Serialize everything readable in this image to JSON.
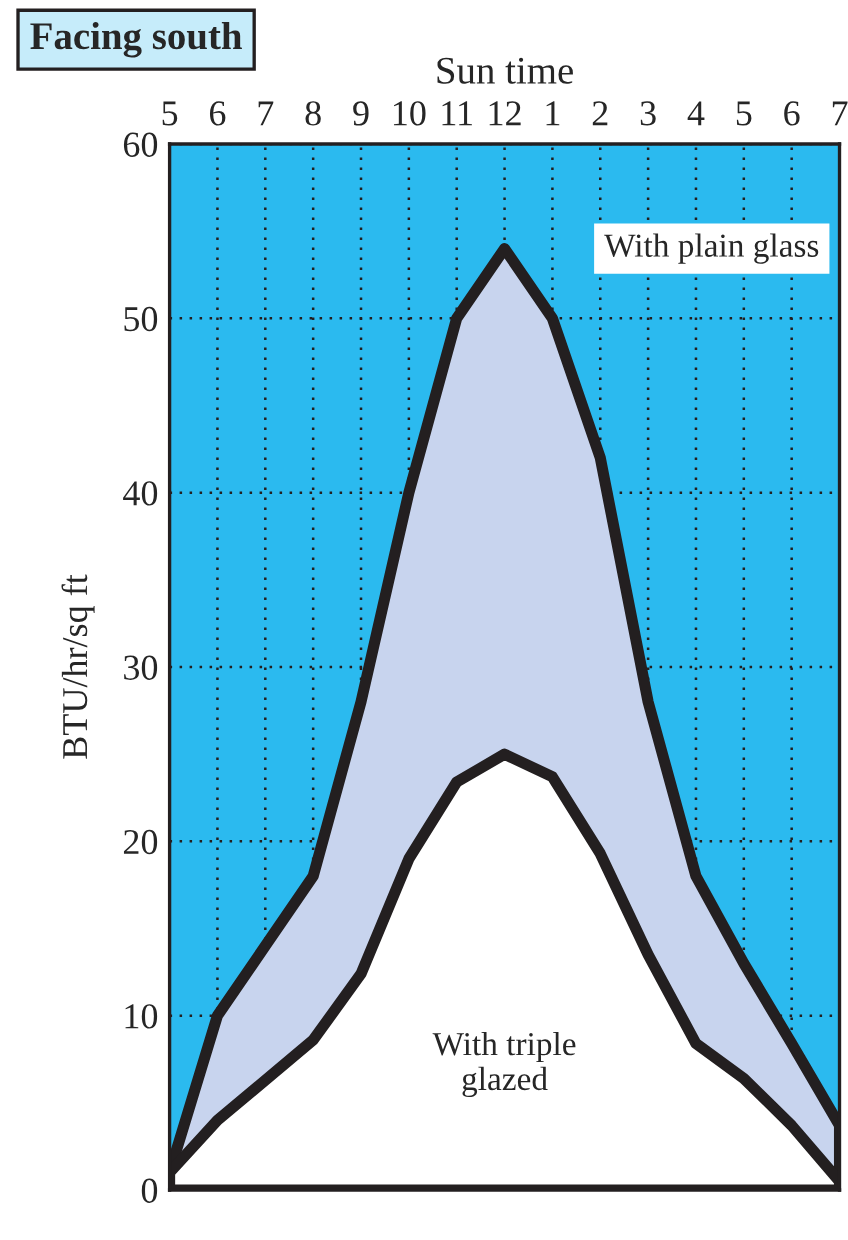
{
  "chart_data": {
    "type": "area",
    "title": "Facing south",
    "xlabel": "Sun time",
    "ylabel": "BTU/hr/sq ft",
    "categories": [
      "5",
      "6",
      "7",
      "8",
      "9",
      "10",
      "11",
      "12",
      "1",
      "2",
      "3",
      "4",
      "5",
      "6",
      "7"
    ],
    "series": [
      {
        "color": "#c8d4ee",
        "values": [
          1,
          10,
          14,
          18,
          28,
          40,
          50,
          54,
          50,
          42,
          28,
          18,
          13,
          8.4,
          3.7
        ]
      },
      {
        "color": "#ffffff",
        "values": [
          1,
          4,
          6.3,
          8.6,
          12.4,
          19,
          23.4,
          25,
          23.7,
          19.3,
          13.5,
          8.4,
          6.4,
          3.7,
          0.5
        ]
      }
    ],
    "ylim": [
      0,
      60
    ],
    "yticks": [
      0,
      10,
      20,
      30,
      40,
      50,
      60
    ],
    "grid": true,
    "line_style": "solid",
    "annotations": [
      "With plain glass",
      "With triple\nglazed"
    ]
  }
}
